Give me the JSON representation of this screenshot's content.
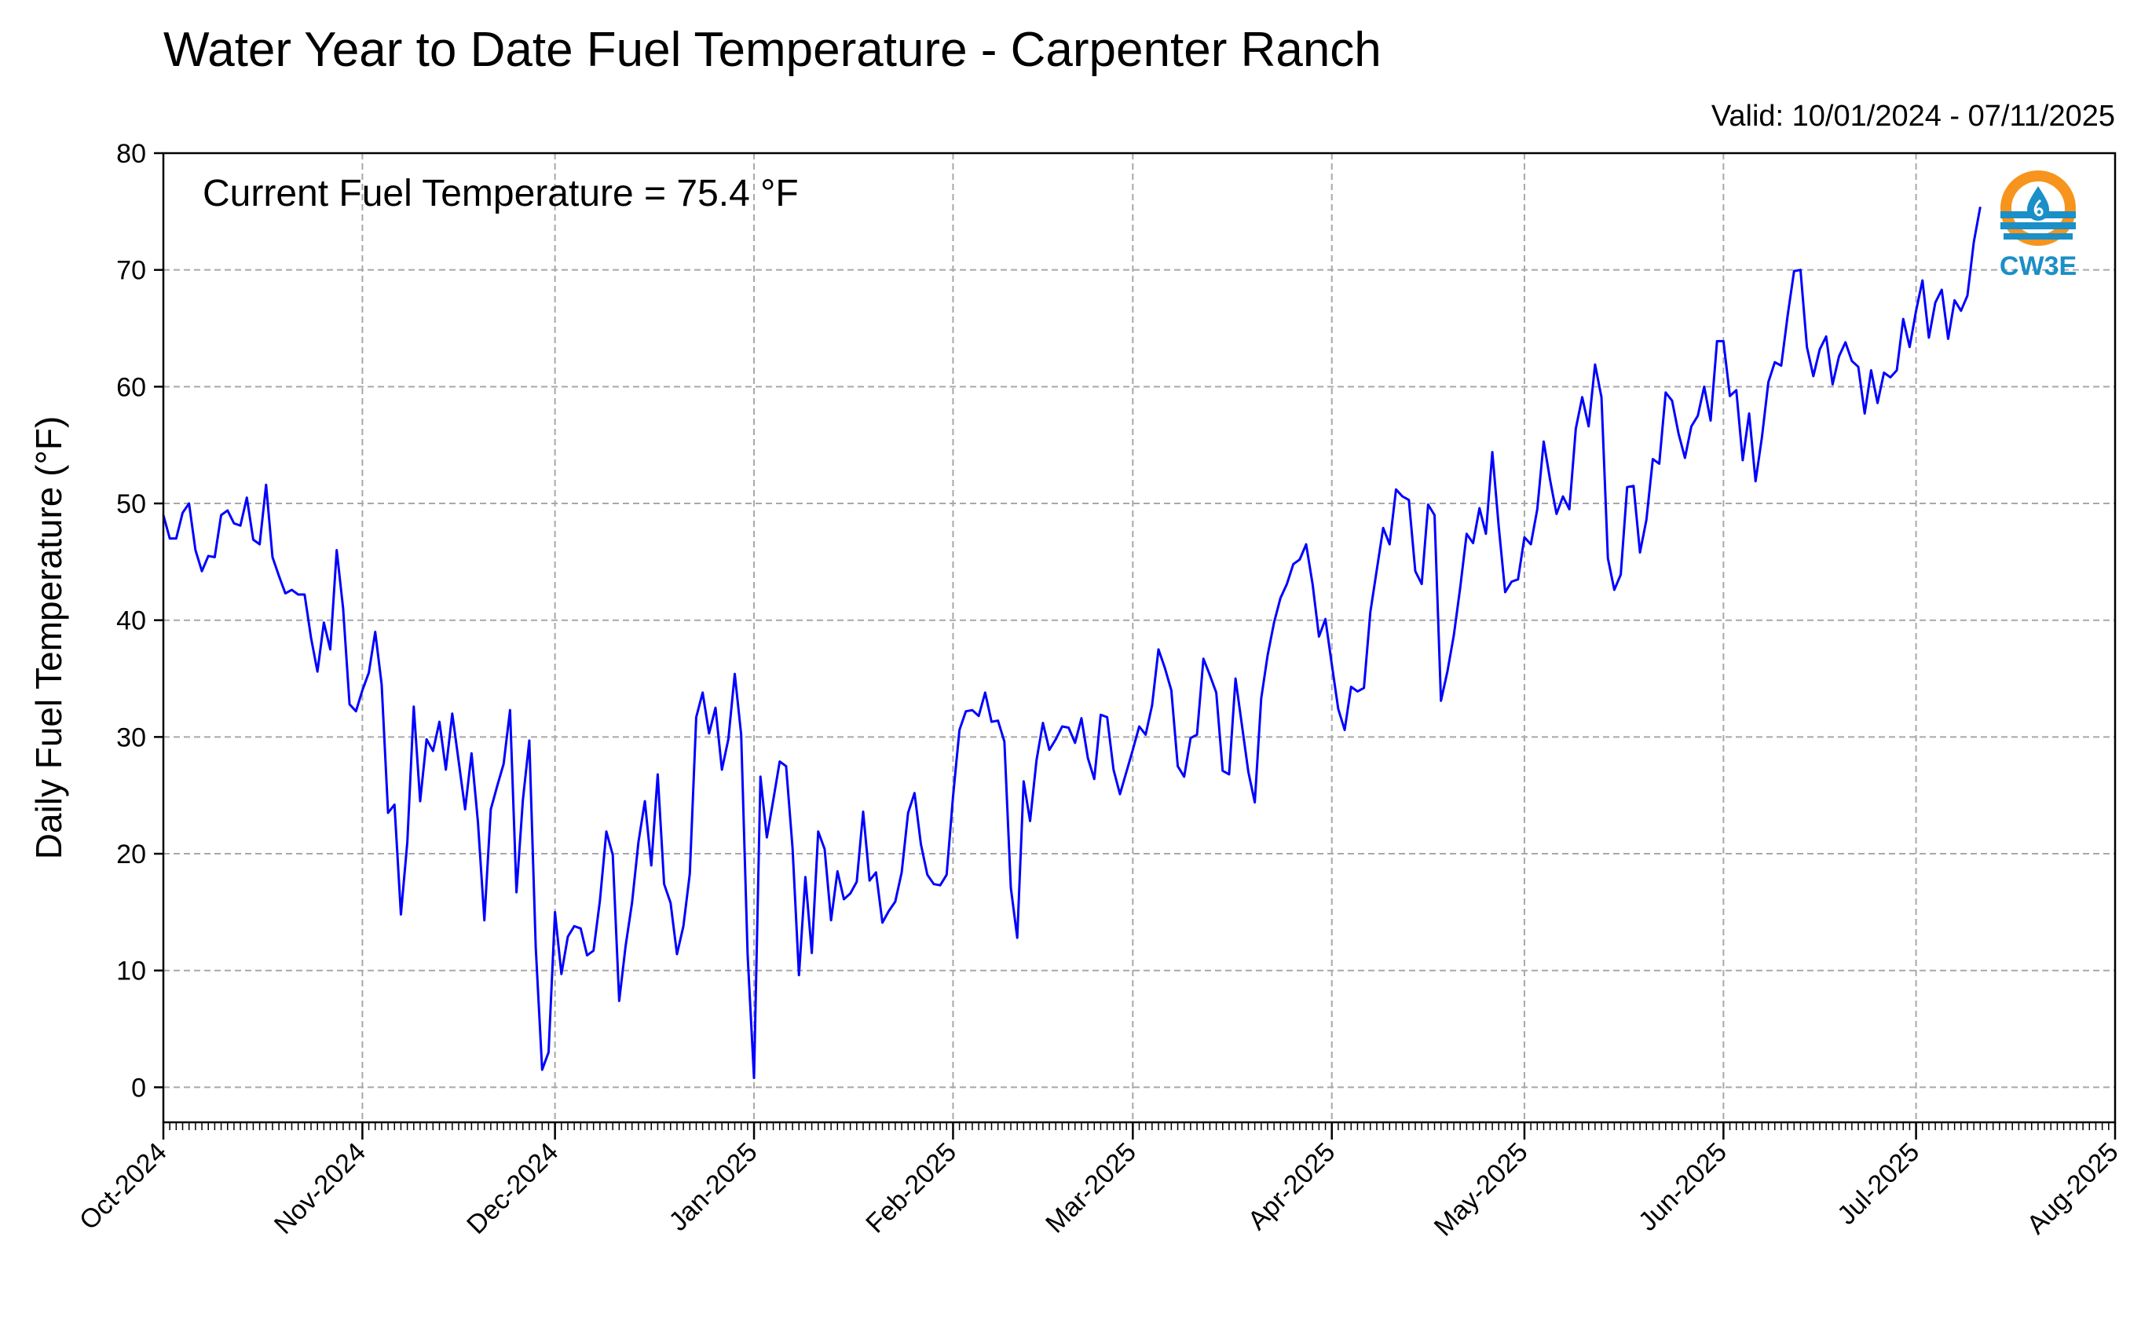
{
  "chart_data": {
    "type": "line",
    "title": "Water Year to Date Fuel Temperature - Carpenter Ranch",
    "valid_text": "Valid: 10/01/2024 - 07/11/2025",
    "annotation": "Current Fuel Temperature = 75.4 °F",
    "ylabel": "Daily Fuel Temperature (°F)",
    "xlabel": "",
    "ylim": [
      -3,
      80
    ],
    "xlim": [
      "2024-10-01",
      "2025-08-01"
    ],
    "yticks": [
      0,
      10,
      20,
      30,
      40,
      50,
      60,
      70,
      80
    ],
    "xtick_labels": [
      "Oct-2024",
      "Nov-2024",
      "Dec-2024",
      "Jan-2025",
      "Feb-2025",
      "Mar-2025",
      "Apr-2025",
      "May-2025",
      "Jun-2025",
      "Jul-2025",
      "Aug-2025"
    ],
    "xtick_dates": [
      "2024-10-01",
      "2024-11-01",
      "2024-12-01",
      "2025-01-01",
      "2025-02-01",
      "2025-03-01",
      "2025-04-01",
      "2025-05-01",
      "2025-06-01",
      "2025-07-01",
      "2025-08-01"
    ],
    "grid": true,
    "series_color": "#0000ff",
    "series": [
      {
        "x_start": "2024-10-01",
        "x_step_days": 1,
        "values": [
          49.0,
          47.0,
          47.0,
          49.2,
          50.0,
          46.0,
          44.2,
          45.5,
          45.4,
          49.0,
          49.4,
          48.3,
          48.1,
          50.5,
          46.9,
          46.5,
          51.6,
          45.4,
          43.8,
          42.3,
          42.6,
          42.2,
          42.2,
          38.5,
          35.6,
          39.8,
          37.5,
          46.0,
          41.0,
          32.8,
          32.2,
          34.0,
          35.5,
          39.0,
          34.5,
          23.5,
          24.2,
          14.8,
          21.0,
          32.6,
          24.5,
          29.8,
          28.8,
          31.3,
          27.2,
          32.0,
          27.9,
          23.8,
          28.6,
          22.7,
          14.3,
          23.8,
          25.8,
          27.7,
          32.3,
          16.7,
          24.6,
          29.7,
          12.0,
          1.5,
          3.0,
          15.0,
          9.7,
          12.9,
          13.8,
          13.6,
          11.3,
          11.7,
          16.0,
          21.9,
          19.9,
          7.4,
          12.1,
          15.8,
          21.0,
          24.5,
          19.0,
          26.8,
          17.4,
          15.8,
          11.4,
          13.8,
          18.3,
          31.7,
          33.8,
          30.3,
          32.5,
          27.2,
          29.8,
          35.4,
          30.2,
          11.4,
          0.8,
          26.6,
          21.4,
          24.6,
          27.9,
          27.5,
          20.5,
          9.6,
          18.0,
          11.5,
          21.9,
          20.4,
          14.3,
          18.5,
          16.1,
          16.6,
          17.6,
          23.6,
          17.7,
          18.4,
          14.1,
          15.1,
          15.9,
          18.4,
          23.5,
          25.2,
          20.8,
          18.2,
          17.4,
          17.3,
          18.2,
          24.9,
          30.6,
          32.2,
          32.3,
          31.8,
          33.8,
          31.3,
          31.4,
          29.6,
          17.1,
          12.8,
          26.2,
          22.8,
          28.0,
          31.2,
          28.9,
          29.8,
          30.9,
          30.8,
          29.5,
          31.6,
          28.2,
          26.4,
          31.9,
          31.7,
          27.2,
          25.1,
          27.0,
          28.9,
          30.9,
          30.2,
          32.7,
          37.5,
          35.9,
          34.0,
          27.5,
          26.6,
          29.9,
          30.2,
          36.7,
          35.3,
          33.8,
          27.1,
          26.8,
          35.0,
          31.0,
          27.0,
          24.4,
          33.3,
          37.0,
          39.8,
          41.9,
          43.1,
          44.8,
          45.2,
          46.5,
          43.1,
          38.6,
          40.1,
          36.2,
          32.4,
          30.6,
          34.3,
          33.9,
          34.2,
          40.7,
          44.3,
          47.9,
          46.5,
          51.2,
          50.6,
          50.3,
          44.2,
          43.1,
          49.9,
          49.0,
          33.1,
          35.6,
          38.7,
          42.8,
          47.4,
          46.6,
          49.6,
          47.4,
          54.4,
          48.0,
          42.4,
          43.3,
          43.5,
          47.1,
          46.5,
          49.5,
          55.3,
          52.0,
          49.1,
          50.6,
          49.5,
          56.4,
          59.1,
          56.6,
          61.9,
          59.1,
          45.3,
          42.6,
          43.9,
          51.4,
          51.5,
          45.8,
          48.6,
          53.8,
          53.4,
          59.5,
          58.8,
          56.0,
          53.9,
          56.6,
          57.5,
          60.0,
          57.1,
          63.9,
          63.9,
          59.2,
          59.7,
          53.7,
          57.7,
          51.9,
          55.7,
          60.4,
          62.1,
          61.8,
          66.1,
          69.9,
          70.0,
          63.4,
          60.9,
          63.2,
          64.3,
          60.2,
          62.6,
          63.8,
          62.2,
          61.7,
          57.7,
          61.4,
          58.6,
          61.2,
          60.8,
          61.4,
          65.8,
          63.4,
          66.5,
          69.1,
          64.2,
          67.2,
          68.3,
          64.1,
          67.4,
          66.5,
          67.8,
          72.4,
          75.4
        ]
      }
    ]
  },
  "logo": {
    "text": "CW3E",
    "orange": "#f7941d",
    "blue": "#1b8fc7"
  }
}
